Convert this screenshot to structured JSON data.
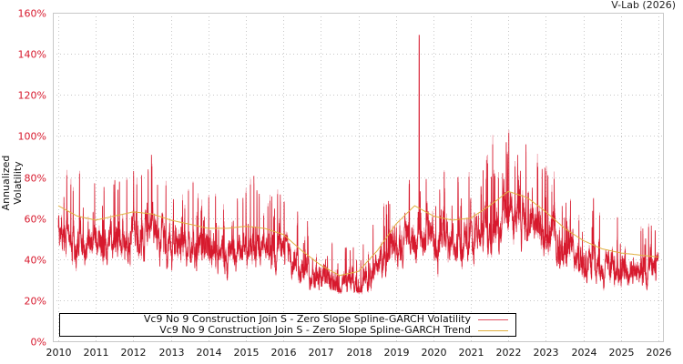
{
  "header": {
    "credit": "V-Lab (2026)"
  },
  "chart_data": {
    "type": "line",
    "title": "",
    "xlabel": "",
    "ylabel": "Annualized Volatility",
    "xlim": [
      2010,
      2026
    ],
    "ylim": [
      0,
      160
    ],
    "y_ticks": [
      "0%",
      "20%",
      "40%",
      "60%",
      "80%",
      "100%",
      "120%",
      "140%",
      "160%"
    ],
    "x_ticks": [
      "2010",
      "2011",
      "2012",
      "2013",
      "2014",
      "2015",
      "2016",
      "2017",
      "2018",
      "2019",
      "2020",
      "2021",
      "2022",
      "2023",
      "2024",
      "2025",
      "2026"
    ],
    "grid": true,
    "legend_position": "bottom-inside",
    "series": [
      {
        "name": "Vc9 No 9 Construction Join S - Zero Slope Spline-GARCH Volatility",
        "color": "#d7192d",
        "x": [
          2010.0,
          2010.25,
          2010.5,
          2010.75,
          2011.0,
          2011.25,
          2011.5,
          2011.75,
          2012.0,
          2012.25,
          2012.5,
          2012.75,
          2013.0,
          2013.25,
          2013.5,
          2013.75,
          2014.0,
          2014.25,
          2014.5,
          2014.75,
          2015.0,
          2015.25,
          2015.5,
          2015.75,
          2016.0,
          2016.25,
          2016.5,
          2016.75,
          2017.0,
          2017.25,
          2017.5,
          2017.75,
          2018.0,
          2018.25,
          2018.5,
          2018.75,
          2019.0,
          2019.25,
          2019.5,
          2019.62,
          2019.75,
          2020.0,
          2020.25,
          2020.5,
          2020.75,
          2021.0,
          2021.25,
          2021.5,
          2021.75,
          2022.0,
          2022.25,
          2022.5,
          2022.75,
          2023.0,
          2023.25,
          2023.5,
          2023.75,
          2024.0,
          2024.25,
          2024.5,
          2024.75,
          2025.0,
          2025.25,
          2025.5,
          2025.75,
          2026.0
        ],
        "values": [
          70,
          75,
          58,
          62,
          55,
          64,
          60,
          66,
          62,
          70,
          60,
          65,
          58,
          55,
          62,
          50,
          48,
          60,
          52,
          55,
          50,
          60,
          48,
          52,
          42,
          48,
          38,
          33,
          30,
          28,
          30,
          26,
          35,
          45,
          55,
          62,
          58,
          65,
          70,
          149,
          60,
          55,
          65,
          50,
          58,
          62,
          68,
          60,
          70,
          80,
          95,
          75,
          70,
          65,
          62,
          55,
          58,
          50,
          46,
          48,
          44,
          42,
          45,
          40,
          42,
          38
        ],
        "range_min": 24,
        "range_max": 149
      },
      {
        "name": "Vc9 No 9 Construction Join S - Zero Slope Spline-GARCH Trend",
        "color": "#e0b040",
        "x": [
          2010.0,
          2010.5,
          2011.0,
          2011.5,
          2012.0,
          2012.5,
          2013.0,
          2013.5,
          2014.0,
          2014.5,
          2015.0,
          2015.5,
          2016.0,
          2016.5,
          2017.0,
          2017.5,
          2018.0,
          2018.5,
          2019.0,
          2019.5,
          2020.0,
          2020.5,
          2021.0,
          2021.5,
          2022.0,
          2022.5,
          2023.0,
          2023.5,
          2024.0,
          2024.5,
          2025.0,
          2025.5,
          2026.0
        ],
        "values": [
          66,
          61,
          59,
          61,
          63,
          62,
          59,
          57,
          55,
          55,
          56,
          55,
          52,
          44,
          37,
          32,
          34,
          44,
          57,
          66,
          61,
          59,
          60,
          66,
          73,
          70,
          63,
          55,
          49,
          45,
          43,
          42,
          41
        ]
      }
    ]
  },
  "legend": {
    "items": [
      {
        "label": "Vc9 No 9 Construction Join S - Zero Slope Spline-GARCH Volatility",
        "color": "#d7192d"
      },
      {
        "label": "Vc9 No 9 Construction Join S - Zero Slope Spline-GARCH Trend",
        "color": "#e0b040"
      }
    ]
  }
}
